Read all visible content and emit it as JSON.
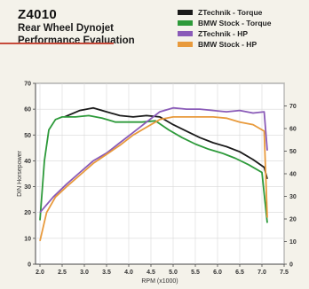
{
  "header": {
    "model": "Z4010",
    "subtitle_line1": "Rear Wheel Dynojet",
    "subtitle_line2": "Performance Evaluation"
  },
  "chart_data": {
    "type": "line",
    "title": "Z4010",
    "subtitle": "Rear Wheel Dynojet Performance Evaluation",
    "xlabel": "RPM (x1000)",
    "ylabel_left": "DIN Horsepower",
    "ylabel_right": "",
    "xlim": [
      1.9,
      7.5
    ],
    "ylim_left": [
      0,
      70
    ],
    "ylim_right": [
      0,
      80
    ],
    "x_ticks": [
      "2.0",
      "2.5",
      "3.0",
      "3.5",
      "4.0",
      "4.5",
      "5.0",
      "5.5",
      "6.0",
      "6.5",
      "7.0",
      "7.5"
    ],
    "y_ticks_left": [
      "0",
      "10",
      "20",
      "30",
      "40",
      "50",
      "60",
      "70"
    ],
    "y_ticks_right": [
      "0",
      "10",
      "20",
      "30",
      "40",
      "50",
      "60",
      "70"
    ],
    "grid": true,
    "legend_position": "top-right",
    "series": [
      {
        "name": "ZTechnik - Torque",
        "color": "#1a1a1a",
        "x": [
          2.55,
          2.9,
          3.2,
          3.5,
          3.8,
          4.1,
          4.4,
          4.7,
          5.0,
          5.3,
          5.6,
          5.9,
          6.2,
          6.5,
          6.8,
          7.05,
          7.12
        ],
        "y": [
          57.0,
          59.5,
          60.5,
          59.0,
          57.5,
          57.0,
          57.5,
          57.0,
          54.0,
          51.5,
          49.0,
          47.0,
          45.5,
          43.5,
          40.5,
          37.5,
          33.0
        ]
      },
      {
        "name": "BMW Stock - Torque",
        "color": "#2d9a3a",
        "x": [
          2.0,
          2.1,
          2.2,
          2.35,
          2.5,
          2.8,
          3.1,
          3.4,
          3.7,
          4.0,
          4.3,
          4.6,
          4.9,
          5.2,
          5.5,
          5.8,
          6.1,
          6.4,
          6.7,
          7.0,
          7.12
        ],
        "y": [
          17.0,
          40.0,
          52.0,
          56.0,
          57.0,
          57.0,
          57.5,
          56.5,
          55.0,
          55.0,
          55.0,
          55.5,
          52.0,
          49.0,
          46.5,
          44.5,
          43.0,
          41.0,
          38.5,
          35.5,
          16.0
        ]
      },
      {
        "name": "ZTechnik - HP",
        "color": "#8a5bb8",
        "x": [
          2.0,
          2.3,
          2.6,
          2.9,
          3.2,
          3.5,
          3.8,
          4.1,
          4.4,
          4.7,
          5.0,
          5.3,
          5.6,
          5.9,
          6.2,
          6.5,
          6.8,
          7.05,
          7.12
        ],
        "y": [
          20.0,
          26.0,
          31.0,
          35.5,
          40.0,
          43.0,
          47.0,
          51.0,
          55.0,
          59.0,
          60.5,
          60.0,
          60.0,
          59.5,
          59.0,
          59.5,
          58.5,
          59.0,
          44.0
        ]
      },
      {
        "name": "BMW Stock - HP",
        "color": "#e89a3c",
        "x": [
          2.0,
          2.15,
          2.35,
          2.6,
          2.9,
          3.2,
          3.5,
          3.8,
          4.1,
          4.4,
          4.7,
          5.0,
          5.3,
          5.6,
          5.9,
          6.2,
          6.5,
          6.8,
          7.05,
          7.12
        ],
        "y": [
          9.0,
          20.0,
          26.0,
          30.0,
          34.5,
          39.0,
          42.5,
          46.0,
          50.0,
          53.0,
          56.0,
          57.0,
          57.0,
          57.0,
          57.0,
          56.5,
          55.0,
          54.0,
          51.5,
          18.0
        ]
      }
    ]
  }
}
